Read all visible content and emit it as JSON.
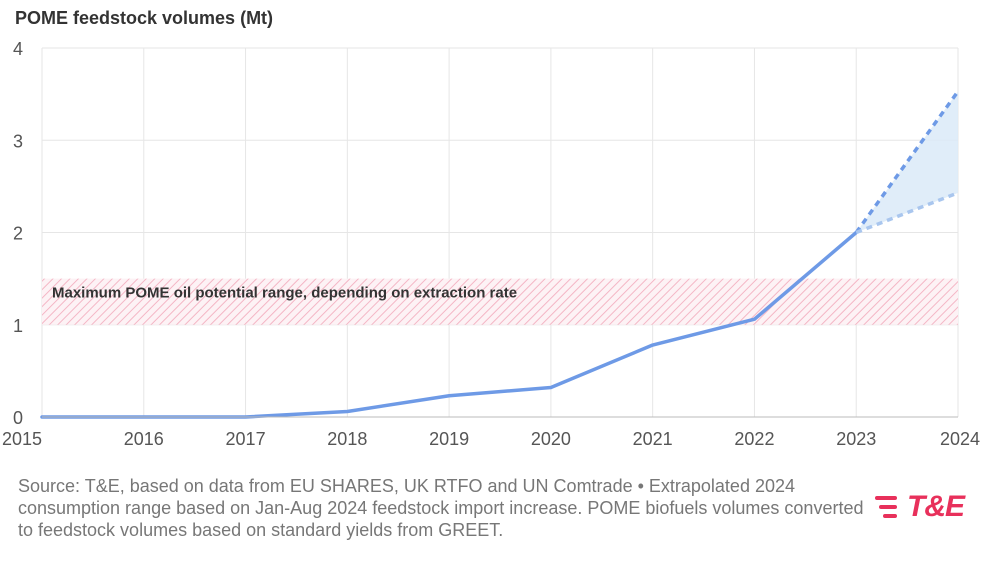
{
  "chart_data": {
    "type": "line",
    "title": "POME feedstock volumes (Mt)",
    "x": [
      "2015",
      "2016",
      "2017",
      "2018",
      "2019",
      "2020",
      "2021",
      "2022",
      "2023",
      "2024"
    ],
    "ylim": [
      0,
      4
    ],
    "yticks": [
      "0",
      "1",
      "2",
      "3",
      "4"
    ],
    "grid": true,
    "series": [
      {
        "style": "solid",
        "color": "#6e9ae6",
        "points": [
          [
            2015,
            0.0
          ],
          [
            2016,
            0.0
          ],
          [
            2017,
            0.0
          ],
          [
            2018,
            0.06
          ],
          [
            2019,
            0.23
          ],
          [
            2020,
            0.32
          ],
          [
            2021,
            0.78
          ],
          [
            2022,
            1.06
          ],
          [
            2023,
            2.0
          ]
        ]
      },
      {
        "style": "dashed",
        "color": "#6e9ae6",
        "points": [
          [
            2023,
            2.0
          ],
          [
            2024,
            3.53
          ]
        ]
      },
      {
        "style": "dashed",
        "color": "#a9c6ee",
        "points": [
          [
            2023,
            2.0
          ],
          [
            2024,
            2.43
          ]
        ]
      }
    ],
    "projection_band": {
      "from": 2023,
      "to": 2024,
      "low": [
        2.0,
        2.43
      ],
      "high": [
        2.0,
        3.53
      ],
      "color": "#dbeaf8"
    },
    "reference_band": {
      "y_low": 1.0,
      "y_high": 1.5,
      "label": "Maximum POME oil potential range, depending on extraction rate",
      "color": "#f4b6c5"
    }
  },
  "source_text": "Source: T&E, based on data from EU SHARES, UK RTFO and UN Comtrade • Extrapolated 2024 consumption range based on Jan-Aug 2024 feedstock import increase. POME biofuels volumes converted to feedstock volumes based on standard yields from GREET.",
  "logo": {
    "text": "T&E",
    "color": "#e8305b"
  }
}
